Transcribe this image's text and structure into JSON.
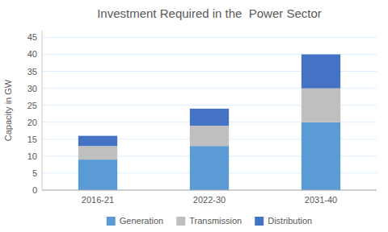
{
  "chart_data": {
    "type": "bar",
    "stacked": true,
    "title": "Investment Required in the  Power Sector",
    "ylabel": "Capacity in GW",
    "categories": [
      "2016-21",
      "2022-30",
      "2031-40"
    ],
    "series": [
      {
        "name": "Generation",
        "color": "#5B9BD5",
        "values": [
          9,
          13,
          20
        ]
      },
      {
        "name": "Transmission",
        "color": "#BFBFBF",
        "values": [
          4,
          6,
          10
        ]
      },
      {
        "name": "Distribution",
        "color": "#4472C4",
        "values": [
          3,
          5,
          10
        ]
      }
    ],
    "ylim": [
      0,
      47
    ],
    "yticks": [
      0,
      5,
      10,
      15,
      20,
      25,
      30,
      35,
      40,
      45
    ],
    "grid": true,
    "legend": "bottom"
  }
}
